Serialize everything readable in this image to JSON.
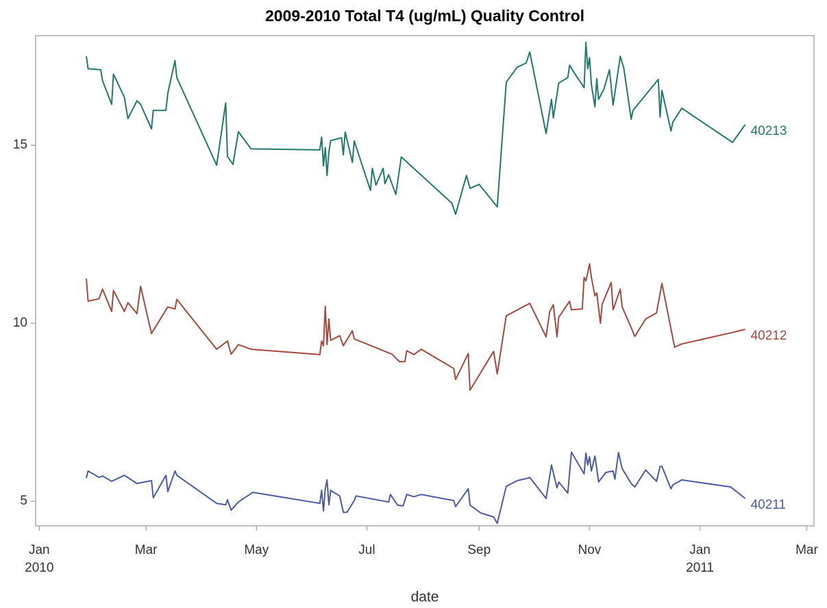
{
  "chart_data": {
    "type": "line",
    "title": "2009-2010 Total T4 (ug/mL) Quality Control",
    "x_label": "date",
    "xlim": [
      "2009-12-30",
      "2011-03-05"
    ],
    "xticks": [
      {
        "value": "2010-01-01",
        "label": "Jan 2010"
      },
      {
        "value": "2010-03-01",
        "label": "Mar"
      },
      {
        "value": "2010-05-01",
        "label": "May"
      },
      {
        "value": "2010-07-01",
        "label": "Jul"
      },
      {
        "value": "2010-09-01",
        "label": "Sep"
      },
      {
        "value": "2010-11-01",
        "label": "Nov"
      },
      {
        "value": "2011-01-01",
        "label": "Jan 2011"
      },
      {
        "value": "2011-03-01",
        "label": "Mar"
      }
    ],
    "ylim": [
      4.31,
      18.08
    ],
    "yticks": [
      5,
      10,
      15
    ],
    "series": [
      {
        "name": "40211",
        "color": "#4b5aa2",
        "x": [
          "2010-01-27",
          "2010-01-28",
          "2010-02-03",
          "2010-02-05",
          "2010-02-10",
          "2010-02-17",
          "2010-02-24",
          "2010-03-04",
          "2010-03-05",
          "2010-03-12",
          "2010-03-13",
          "2010-03-17",
          "2010-03-18",
          "2010-04-09",
          "2010-04-14",
          "2010-04-15",
          "2010-04-17",
          "2010-04-21",
          "2010-04-29",
          "2010-06-05",
          "2010-06-06",
          "2010-06-07",
          "2010-06-08",
          "2010-06-09",
          "2010-06-10",
          "2010-06-11",
          "2010-06-12",
          "2010-06-16",
          "2010-06-18",
          "2010-06-20",
          "2010-06-24",
          "2010-06-25",
          "2010-07-13",
          "2010-07-14",
          "2010-07-18",
          "2010-07-21",
          "2010-07-23",
          "2010-07-27",
          "2010-07-31",
          "2010-08-18",
          "2010-08-19",
          "2010-08-26",
          "2010-08-27",
          "2010-09-02",
          "2010-09-09",
          "2010-09-11",
          "2010-09-16",
          "2010-09-22",
          "2010-09-28",
          "2010-09-29",
          "2010-10-08",
          "2010-10-11",
          "2010-10-14",
          "2010-10-15",
          "2010-10-20",
          "2010-10-22",
          "2010-10-29",
          "2010-10-30",
          "2010-10-31",
          "2010-11-01",
          "2010-11-02",
          "2010-11-04",
          "2010-11-05",
          "2010-11-06",
          "2010-11-10",
          "2010-11-14",
          "2010-11-15",
          "2010-11-17",
          "2010-11-19",
          "2010-11-24",
          "2010-11-26",
          "2010-12-02",
          "2010-12-08",
          "2010-12-10",
          "2010-12-11",
          "2010-12-16",
          "2010-12-17",
          "2010-12-22",
          "2011-01-18",
          "2011-01-26"
        ],
        "values": [
          5.65,
          5.85,
          5.67,
          5.71,
          5.56,
          5.73,
          5.5,
          5.58,
          5.1,
          5.73,
          5.27,
          5.85,
          5.73,
          4.94,
          4.9,
          5.04,
          4.75,
          4.98,
          5.25,
          4.94,
          5.31,
          4.73,
          5.35,
          5.6,
          4.9,
          5.31,
          5.27,
          5.15,
          4.69,
          4.69,
          5.02,
          5.15,
          4.98,
          5.19,
          4.89,
          4.87,
          5.19,
          5.13,
          5.19,
          5.02,
          4.85,
          5.35,
          4.89,
          4.67,
          4.56,
          4.38,
          5.42,
          5.58,
          5.65,
          5.67,
          5.08,
          6.02,
          5.38,
          5.54,
          5.23,
          6.38,
          5.77,
          6.35,
          6.02,
          6.25,
          5.85,
          6.27,
          5.92,
          5.54,
          5.81,
          5.85,
          5.62,
          6.37,
          5.92,
          5.5,
          5.4,
          5.88,
          5.56,
          5.98,
          5.98,
          5.35,
          5.46,
          5.6,
          5.4,
          5.08
        ]
      },
      {
        "name": "40212",
        "color": "#a5483e",
        "x": [
          "2010-01-27",
          "2010-01-28",
          "2010-02-03",
          "2010-02-05",
          "2010-02-10",
          "2010-02-11",
          "2010-02-17",
          "2010-02-19",
          "2010-02-24",
          "2010-02-26",
          "2010-03-04",
          "2010-03-13",
          "2010-03-17",
          "2010-03-18",
          "2010-04-09",
          "2010-04-15",
          "2010-04-17",
          "2010-04-21",
          "2010-04-28",
          "2010-06-05",
          "2010-06-06",
          "2010-06-07",
          "2010-06-08",
          "2010-06-09",
          "2010-06-10",
          "2010-06-11",
          "2010-06-16",
          "2010-06-18",
          "2010-06-23",
          "2010-06-24",
          "2010-07-15",
          "2010-07-19",
          "2010-07-22",
          "2010-07-23",
          "2010-07-27",
          "2010-07-31",
          "2010-08-18",
          "2010-08-19",
          "2010-08-26",
          "2010-08-27",
          "2010-09-09",
          "2010-09-11",
          "2010-09-16",
          "2010-09-29",
          "2010-10-08",
          "2010-10-10",
          "2010-10-12",
          "2010-10-14",
          "2010-10-15",
          "2010-10-21",
          "2010-10-22",
          "2010-10-28",
          "2010-10-29",
          "2010-10-30",
          "2010-10-31",
          "2010-11-01",
          "2010-11-02",
          "2010-11-04",
          "2010-11-05",
          "2010-11-07",
          "2010-11-08",
          "2010-11-13",
          "2010-11-14",
          "2010-11-18",
          "2010-11-19",
          "2010-11-24",
          "2010-11-26",
          "2010-12-02",
          "2010-12-08",
          "2010-12-11",
          "2010-12-18",
          "2010-12-22",
          "2011-01-18",
          "2011-01-26"
        ],
        "values": [
          11.25,
          10.62,
          10.69,
          10.96,
          10.33,
          10.92,
          10.33,
          10.58,
          10.27,
          11.04,
          9.71,
          10.46,
          10.4,
          10.67,
          9.27,
          9.5,
          9.13,
          9.4,
          9.27,
          9.12,
          9.5,
          9.37,
          10.48,
          9.4,
          10.12,
          9.52,
          9.65,
          9.37,
          9.79,
          9.56,
          9.13,
          8.92,
          8.92,
          9.23,
          9.12,
          9.27,
          8.73,
          8.42,
          9.15,
          8.12,
          9.21,
          8.58,
          10.21,
          10.56,
          9.62,
          10.33,
          10.52,
          9.62,
          10.17,
          10.62,
          10.38,
          10.4,
          11.29,
          11.19,
          11.42,
          11.67,
          11.29,
          10.77,
          10.85,
          10.0,
          10.54,
          11.15,
          10.38,
          10.96,
          10.46,
          9.88,
          9.63,
          10.12,
          10.29,
          11.12,
          9.33,
          9.42,
          9.73,
          9.83
        ]
      },
      {
        "name": "40213",
        "color": "#1f7a6a",
        "x": [
          "2010-01-27",
          "2010-01-28",
          "2010-02-04",
          "2010-02-05",
          "2010-02-10",
          "2010-02-11",
          "2010-02-17",
          "2010-02-19",
          "2010-02-24",
          "2010-02-26",
          "2010-03-04",
          "2010-03-05",
          "2010-03-12",
          "2010-03-13",
          "2010-03-17",
          "2010-03-18",
          "2010-04-09",
          "2010-04-14",
          "2010-04-15",
          "2010-04-18",
          "2010-04-21",
          "2010-04-28",
          "2010-06-05",
          "2010-06-06",
          "2010-06-07",
          "2010-06-08",
          "2010-06-09",
          "2010-06-10",
          "2010-06-11",
          "2010-06-17",
          "2010-06-18",
          "2010-06-19",
          "2010-06-23",
          "2010-06-24",
          "2010-07-03",
          "2010-07-04",
          "2010-07-06",
          "2010-07-10",
          "2010-07-11",
          "2010-07-13",
          "2010-07-17",
          "2010-07-20",
          "2010-08-17",
          "2010-08-19",
          "2010-08-25",
          "2010-08-27",
          "2010-09-01",
          "2010-09-11",
          "2010-09-16",
          "2010-09-22",
          "2010-09-27",
          "2010-09-29",
          "2010-10-08",
          "2010-10-11",
          "2010-10-12",
          "2010-10-15",
          "2010-10-20",
          "2010-10-21",
          "2010-10-24",
          "2010-10-29",
          "2010-10-30",
          "2010-10-31",
          "2010-11-01",
          "2010-11-02",
          "2010-11-04",
          "2010-11-05",
          "2010-11-06",
          "2010-11-09",
          "2010-11-12",
          "2010-11-14",
          "2010-11-18",
          "2010-11-20",
          "2010-11-24",
          "2010-11-25",
          "2010-12-09",
          "2010-12-10",
          "2010-12-11",
          "2010-12-16",
          "2010-12-17",
          "2010-12-22",
          "2011-01-19",
          "2011-01-26"
        ],
        "values": [
          17.5,
          17.15,
          17.12,
          16.81,
          16.15,
          17.0,
          16.35,
          15.75,
          16.25,
          16.15,
          15.46,
          15.98,
          15.98,
          16.46,
          17.38,
          16.9,
          14.44,
          16.19,
          14.69,
          14.46,
          15.38,
          14.9,
          14.87,
          15.23,
          14.42,
          14.94,
          14.15,
          14.81,
          15.13,
          15.21,
          14.73,
          15.37,
          14.52,
          15.12,
          13.73,
          14.35,
          13.88,
          14.35,
          13.92,
          14.17,
          13.62,
          14.67,
          13.37,
          13.06,
          14.15,
          13.79,
          13.9,
          13.27,
          16.77,
          17.19,
          17.31,
          17.62,
          15.33,
          16.29,
          15.77,
          16.75,
          16.9,
          17.25,
          17.0,
          16.62,
          17.89,
          17.15,
          17.46,
          16.71,
          16.08,
          16.87,
          16.29,
          16.58,
          17.12,
          16.13,
          17.5,
          17.15,
          15.73,
          15.98,
          16.85,
          15.79,
          16.54,
          15.4,
          15.65,
          16.04,
          15.08,
          15.58
        ]
      }
    ]
  }
}
